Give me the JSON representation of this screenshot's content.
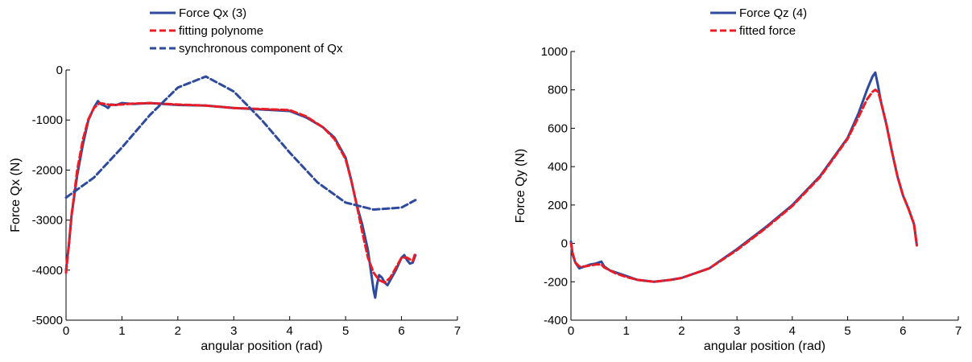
{
  "colors": {
    "blue": "#2e4a9c",
    "red": "#ec1c24",
    "axis": "#000000"
  },
  "chart_data": [
    {
      "type": "line",
      "xlabel": "angular position (rad)",
      "ylabel": "Force Qx (N)",
      "xlim": [
        0,
        7
      ],
      "ylim": [
        -5000,
        0
      ],
      "xticks": [
        0,
        1,
        2,
        3,
        4,
        5,
        6,
        7
      ],
      "yticks": [
        -5000,
        -4000,
        -3000,
        -2000,
        -1000,
        0
      ],
      "legend_position": "top",
      "series": [
        {
          "name": "Force Qx (3)",
          "color": "#2e4a9c",
          "dash": "solid",
          "x": [
            0,
            0.05,
            0.1,
            0.2,
            0.3,
            0.4,
            0.5,
            0.57,
            0.62,
            0.7,
            0.75,
            0.8,
            0.9,
            1.0,
            1.2,
            1.5,
            2.0,
            2.5,
            3.0,
            3.5,
            4.0,
            4.3,
            4.6,
            4.8,
            5.0,
            5.1,
            5.2,
            5.3,
            5.4,
            5.45,
            5.5,
            5.53,
            5.56,
            5.6,
            5.65,
            5.7,
            5.75,
            5.8,
            5.9,
            6.0,
            6.05,
            6.1,
            6.15,
            6.2,
            6.25
          ],
          "y": [
            -4000,
            -3500,
            -2900,
            -2100,
            -1500,
            -1000,
            -750,
            -620,
            -680,
            -720,
            -760,
            -690,
            -700,
            -660,
            -680,
            -660,
            -700,
            -710,
            -760,
            -790,
            -820,
            -950,
            -1150,
            -1350,
            -1750,
            -2200,
            -2700,
            -3100,
            -3600,
            -4000,
            -4400,
            -4550,
            -4300,
            -4100,
            -4150,
            -4250,
            -4300,
            -4200,
            -4000,
            -3750,
            -3700,
            -3800,
            -3870,
            -3850,
            -3700
          ]
        },
        {
          "name": "fitting polynome",
          "color": "#ec1c24",
          "dash": "dashed",
          "x": [
            0,
            0.05,
            0.1,
            0.2,
            0.3,
            0.4,
            0.5,
            0.6,
            0.7,
            0.8,
            1.0,
            1.2,
            1.5,
            2.0,
            2.5,
            3.0,
            3.5,
            4.0,
            4.3,
            4.6,
            4.8,
            5.0,
            5.1,
            5.2,
            5.3,
            5.4,
            5.5,
            5.6,
            5.7,
            5.8,
            5.9,
            6.0,
            6.1,
            6.2,
            6.25
          ],
          "y": [
            -4050,
            -3500,
            -2900,
            -2000,
            -1400,
            -980,
            -760,
            -660,
            -680,
            -700,
            -690,
            -670,
            -660,
            -690,
            -710,
            -760,
            -780,
            -800,
            -930,
            -1150,
            -1380,
            -1780,
            -2200,
            -2700,
            -3250,
            -3750,
            -4050,
            -4200,
            -4250,
            -4150,
            -3950,
            -3750,
            -3750,
            -3820,
            -3650
          ]
        },
        {
          "name": "synchronous component of Qx",
          "color": "#2e4a9c",
          "dash": "dashed",
          "x": [
            0,
            0.5,
            1.0,
            1.5,
            2.0,
            2.5,
            3.0,
            3.5,
            4.0,
            4.5,
            5.0,
            5.5,
            6.0,
            6.25
          ],
          "y": [
            -2550,
            -2150,
            -1550,
            -900,
            -350,
            -130,
            -430,
            -1000,
            -1650,
            -2250,
            -2650,
            -2790,
            -2750,
            -2600
          ]
        }
      ]
    },
    {
      "type": "line",
      "xlabel": "angular position (rad)",
      "ylabel": "Force Qy (N)",
      "xlim": [
        0,
        7
      ],
      "ylim": [
        -400,
        1000
      ],
      "xticks": [
        0,
        1,
        2,
        3,
        4,
        5,
        6,
        7
      ],
      "yticks": [
        -400,
        -200,
        0,
        200,
        400,
        600,
        800,
        1000
      ],
      "legend_position": "top",
      "series": [
        {
          "name": "Force Qz (4)",
          "color": "#2e4a9c",
          "dash": "solid",
          "x": [
            0,
            0.03,
            0.08,
            0.15,
            0.25,
            0.35,
            0.45,
            0.55,
            0.6,
            0.7,
            0.8,
            1.0,
            1.2,
            1.5,
            1.8,
            2.0,
            2.5,
            3.0,
            3.5,
            4.0,
            4.5,
            5.0,
            5.2,
            5.35,
            5.45,
            5.5,
            5.55,
            5.6,
            5.7,
            5.8,
            5.9,
            6.0,
            6.1,
            6.2,
            6.25
          ],
          "y": [
            10,
            -60,
            -100,
            -130,
            -120,
            -110,
            -105,
            -95,
            -120,
            -140,
            -150,
            -170,
            -190,
            -200,
            -190,
            -180,
            -130,
            -30,
            80,
            200,
            350,
            550,
            680,
            800,
            870,
            890,
            820,
            740,
            620,
            480,
            350,
            250,
            180,
            100,
            -10
          ]
        },
        {
          "name": "fitted force",
          "color": "#ec1c24",
          "dash": "dashed",
          "x": [
            0,
            0.03,
            0.08,
            0.15,
            0.25,
            0.35,
            0.45,
            0.55,
            0.6,
            0.7,
            0.8,
            1.0,
            1.2,
            1.5,
            1.8,
            2.0,
            2.5,
            3.0,
            3.5,
            4.0,
            4.5,
            5.0,
            5.2,
            5.35,
            5.45,
            5.5,
            5.55,
            5.6,
            5.7,
            5.8,
            5.9,
            6.0,
            6.1,
            6.2,
            6.25
          ],
          "y": [
            0,
            -50,
            -100,
            -120,
            -120,
            -115,
            -110,
            -110,
            -125,
            -140,
            -155,
            -175,
            -190,
            -200,
            -190,
            -180,
            -130,
            -35,
            75,
            195,
            345,
            545,
            660,
            750,
            790,
            800,
            790,
            740,
            620,
            480,
            350,
            250,
            180,
            100,
            -10
          ]
        }
      ]
    }
  ]
}
